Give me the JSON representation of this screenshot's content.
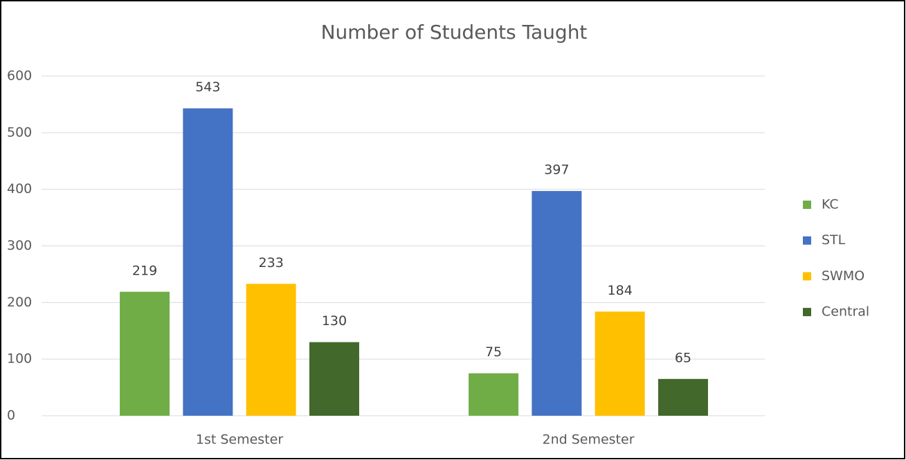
{
  "chart_data": {
    "type": "bar",
    "title": "Number of Students Taught",
    "categories": [
      "1st Semester",
      "2nd Semester"
    ],
    "series": [
      {
        "name": "KC",
        "color": "#70ad47",
        "values": [
          219,
          75
        ]
      },
      {
        "name": "STL",
        "color": "#4472c4",
        "values": [
          543,
          397
        ]
      },
      {
        "name": "SWMO",
        "color": "#ffc000",
        "values": [
          233,
          184
        ]
      },
      {
        "name": "Central",
        "color": "#43682b",
        "values": [
          130,
          65
        ]
      }
    ],
    "ylim": [
      0,
      600
    ],
    "yticks": [
      0,
      100,
      200,
      300,
      400,
      500,
      600
    ],
    "grid": true,
    "legend": "right"
  }
}
